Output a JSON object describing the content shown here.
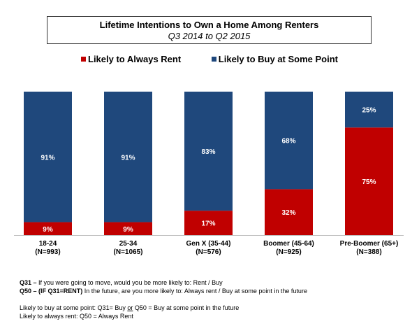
{
  "chart_data": {
    "type": "bar",
    "stacked": true,
    "title": "Lifetime Intentions to Own a Home Among Renters",
    "subtitle": "Q3 2014 to Q2 2015",
    "categories": [
      "18-24",
      "25-34",
      "Gen X (35-44)",
      "Boomer (45-64)",
      "Pre-Boomer (65+)"
    ],
    "category_n": [
      "(N=993)",
      "(N=1065)",
      "(N=576)",
      "(N=925)",
      "(N=388)"
    ],
    "series": [
      {
        "name": "Likely to Always Rent",
        "color": "#c00000",
        "values": [
          9,
          9,
          17,
          32,
          75
        ]
      },
      {
        "name": "Likely to Buy at Some Point",
        "color": "#1f487c",
        "values": [
          91,
          91,
          83,
          68,
          25
        ]
      }
    ],
    "ylim": [
      0,
      100
    ],
    "legend_position": "top"
  },
  "notes": {
    "q31_label": "Q31 –",
    "q31_text": " If you were going to move, would you be more likely to: Rent / Buy",
    "q50_label": "Q50 – (IF Q31=RENT)",
    "q50_text": " In the future, are you more likely to: Always rent / Buy at some point in the future",
    "def1_a": "Likely to buy at some point: Q31= Buy ",
    "def1_or": "or",
    "def1_b": " Q50 = Buy at some point in the future",
    "def2": "Likely to always rent: Q50 = Always Rent"
  }
}
